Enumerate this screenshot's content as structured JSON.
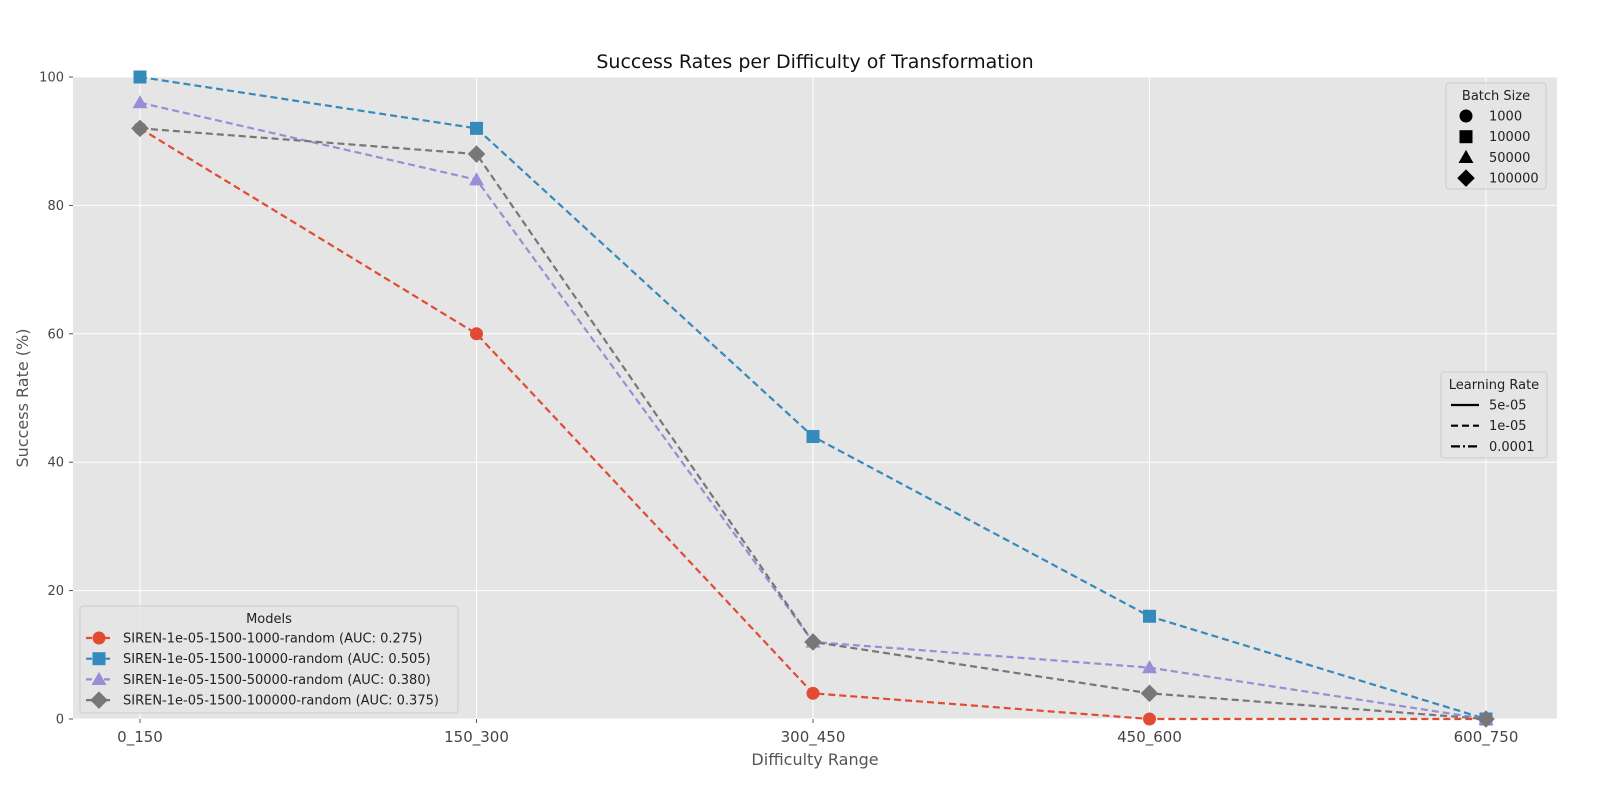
{
  "chart_data": {
    "type": "line",
    "title": "Success Rates per Difficulty of Transformation",
    "xlabel": "Difficulty Range",
    "ylabel": "Success Rate (%)",
    "categories": [
      "0_150",
      "150_300",
      "300_450",
      "450_600",
      "600_750"
    ],
    "ylim": [
      0,
      100
    ],
    "yticks": [
      0,
      20,
      40,
      60,
      80,
      100
    ],
    "grid": true,
    "series": [
      {
        "name": "SIREN-1e-05-1500-1000-random (AUC: 0.275)",
        "values": [
          92,
          60,
          4,
          0,
          0
        ],
        "color": "#E24A33",
        "marker": "circle",
        "linestyle": "dashed"
      },
      {
        "name": "SIREN-1e-05-1500-10000-random (AUC: 0.505)",
        "values": [
          100,
          92,
          44,
          16,
          0
        ],
        "color": "#348ABD",
        "marker": "square",
        "linestyle": "dashed"
      },
      {
        "name": "SIREN-1e-05-1500-50000-random (AUC: 0.380)",
        "values": [
          96,
          84,
          12,
          8,
          0
        ],
        "color": "#988ED5",
        "marker": "triangle",
        "linestyle": "dashed"
      },
      {
        "name": "SIREN-1e-05-1500-100000-random (AUC: 0.375)",
        "values": [
          92,
          88,
          12,
          4,
          0
        ],
        "color": "#777777",
        "marker": "diamond",
        "linestyle": "dashed"
      }
    ],
    "legends": {
      "models": {
        "title": "Models",
        "placement": "bottom-left"
      },
      "batch_size": {
        "title": "Batch Size",
        "placement": "top-right",
        "entries": [
          {
            "label": "1000",
            "marker": "circle"
          },
          {
            "label": "10000",
            "marker": "square"
          },
          {
            "label": "50000",
            "marker": "triangle"
          },
          {
            "label": "100000",
            "marker": "diamond"
          }
        ]
      },
      "learning_rate": {
        "title": "Learning Rate",
        "placement": "center-right",
        "entries": [
          {
            "label": "5e-05",
            "linestyle": "solid"
          },
          {
            "label": "1e-05",
            "linestyle": "dashed"
          },
          {
            "label": "0.0001",
            "linestyle": "dashdot"
          }
        ]
      }
    },
    "colors": {
      "plot_bg": "#E5E5E5",
      "grid": "#FFFFFF",
      "text": "#444444"
    }
  }
}
